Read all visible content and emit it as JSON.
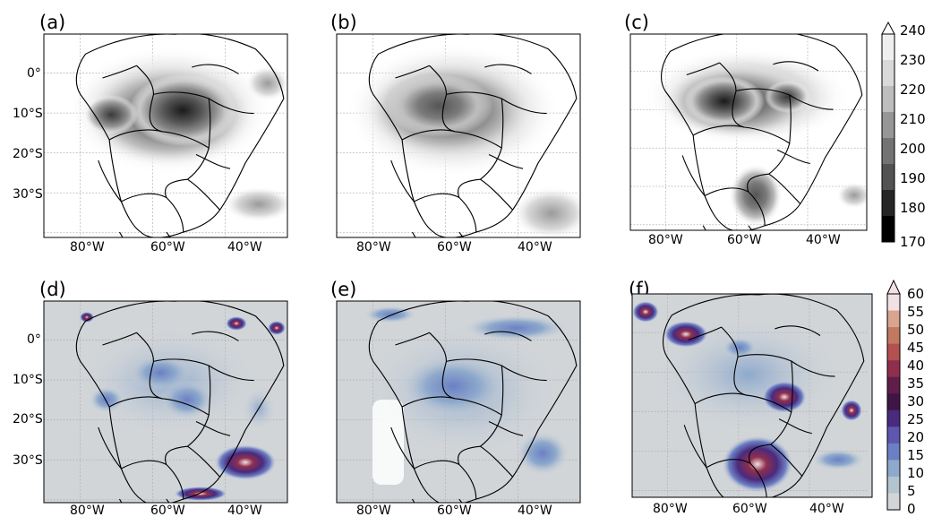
{
  "panels": [
    {
      "id": "a",
      "label": "(a)",
      "kind": "bt"
    },
    {
      "id": "b",
      "label": "(b)",
      "kind": "bt"
    },
    {
      "id": "c",
      "label": "(c)",
      "kind": "bt"
    },
    {
      "id": "d",
      "label": "(d)",
      "kind": "precip"
    },
    {
      "id": "e",
      "label": "(e)",
      "kind": "precip"
    },
    {
      "id": "f",
      "label": "(f)",
      "kind": "precip"
    }
  ],
  "lat_ticks": [
    "0°",
    "10°S",
    "20°S",
    "30°S"
  ],
  "lon_ticks": [
    "80°W",
    "60°W",
    "40°W"
  ],
  "colorbar_bt": {
    "ticks": [
      "240",
      "230",
      "220",
      "210",
      "200",
      "190",
      "180",
      "170"
    ],
    "colors": [
      "#ffffff",
      "#f0f0f0",
      "#d9d9d9",
      "#bdbdbd",
      "#969696",
      "#737373",
      "#525252",
      "#252525",
      "#000000"
    ],
    "extend": "max"
  },
  "colorbar_precip": {
    "ticks": [
      "60",
      "55",
      "50",
      "45",
      "40",
      "35",
      "30",
      "25",
      "20",
      "15",
      "10",
      "5",
      "0"
    ],
    "colors": [
      "#f2e1e4",
      "#d9a58f",
      "#c17a5f",
      "#b35050",
      "#8f2f4d",
      "#5f1d48",
      "#3f1545",
      "#4a2a7e",
      "#5f56b0",
      "#6b80c4",
      "#8ea9cc",
      "#b3c4d0",
      "#d1d5d8"
    ],
    "extend": "max"
  },
  "colors": {
    "map_background": "#d1d5d8",
    "border": "#000000",
    "grid": "#b0b0b0"
  }
}
